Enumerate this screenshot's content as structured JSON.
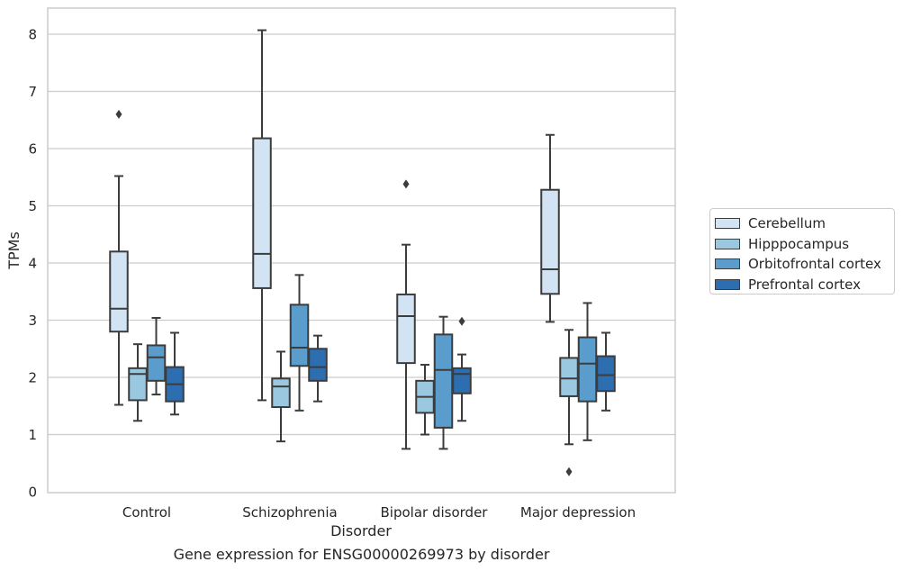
{
  "chart_data": {
    "type": "box",
    "title": "Gene expression for ENSG00000269973 by disorder",
    "xlabel": "Disorder",
    "ylabel": "TPMs",
    "ylim": [
      0,
      8.5
    ],
    "yticks": [
      0,
      1,
      2,
      3,
      4,
      5,
      6,
      7,
      8
    ],
    "grid": "horizontal",
    "legend_position": "right",
    "categories": [
      "Control",
      "Schizophrenia",
      "Bipolar disorder",
      "Major depression"
    ],
    "series": [
      {
        "name": "Cerebellum",
        "color": "#d2e3f3",
        "boxes": [
          {
            "whisker_low": 1.52,
            "q1": 2.8,
            "median": 3.2,
            "q3": 4.2,
            "whisker_high": 5.52,
            "outliers": [
              6.6
            ]
          },
          {
            "whisker_low": 1.6,
            "q1": 3.56,
            "median": 4.16,
            "q3": 6.18,
            "whisker_high": 8.07,
            "outliers": []
          },
          {
            "whisker_low": 0.75,
            "q1": 2.25,
            "median": 3.07,
            "q3": 3.45,
            "whisker_high": 4.32,
            "outliers": [
              5.38
            ]
          },
          {
            "whisker_low": 2.97,
            "q1": 3.46,
            "median": 3.89,
            "q3": 5.28,
            "whisker_high": 6.24,
            "outliers": []
          }
        ]
      },
      {
        "name": "Hipppocampus",
        "color": "#9ac8e0",
        "boxes": [
          {
            "whisker_low": 1.24,
            "q1": 1.6,
            "median": 2.06,
            "q3": 2.16,
            "whisker_high": 2.58,
            "outliers": []
          },
          {
            "whisker_low": 0.88,
            "q1": 1.48,
            "median": 1.84,
            "q3": 1.98,
            "whisker_high": 2.45,
            "outliers": []
          },
          {
            "whisker_low": 1.0,
            "q1": 1.38,
            "median": 1.66,
            "q3": 1.94,
            "whisker_high": 2.22,
            "outliers": []
          },
          {
            "whisker_low": 0.83,
            "q1": 1.67,
            "median": 1.98,
            "q3": 2.34,
            "whisker_high": 2.83,
            "outliers": [
              0.35
            ]
          }
        ]
      },
      {
        "name": "Orbitofrontal cortex",
        "color": "#5a9ccb",
        "boxes": [
          {
            "whisker_low": 1.7,
            "q1": 1.94,
            "median": 2.35,
            "q3": 2.56,
            "whisker_high": 3.04,
            "outliers": []
          },
          {
            "whisker_low": 1.42,
            "q1": 2.2,
            "median": 2.52,
            "q3": 3.27,
            "whisker_high": 3.79,
            "outliers": []
          },
          {
            "whisker_low": 0.75,
            "q1": 1.12,
            "median": 2.13,
            "q3": 2.75,
            "whisker_high": 3.06,
            "outliers": []
          },
          {
            "whisker_low": 0.9,
            "q1": 1.58,
            "median": 2.24,
            "q3": 2.7,
            "whisker_high": 3.3,
            "outliers": []
          }
        ]
      },
      {
        "name": "Prefrontal cortex",
        "color": "#2c6eb0",
        "boxes": [
          {
            "whisker_low": 1.35,
            "q1": 1.58,
            "median": 1.88,
            "q3": 2.18,
            "whisker_high": 2.78,
            "outliers": []
          },
          {
            "whisker_low": 1.58,
            "q1": 1.94,
            "median": 2.18,
            "q3": 2.5,
            "whisker_high": 2.73,
            "outliers": []
          },
          {
            "whisker_low": 1.24,
            "q1": 1.72,
            "median": 2.06,
            "q3": 2.16,
            "whisker_high": 2.4,
            "outliers": [
              2.98
            ]
          },
          {
            "whisker_low": 1.42,
            "q1": 1.76,
            "median": 2.04,
            "q3": 2.37,
            "whisker_high": 2.78,
            "outliers": []
          }
        ]
      }
    ]
  }
}
